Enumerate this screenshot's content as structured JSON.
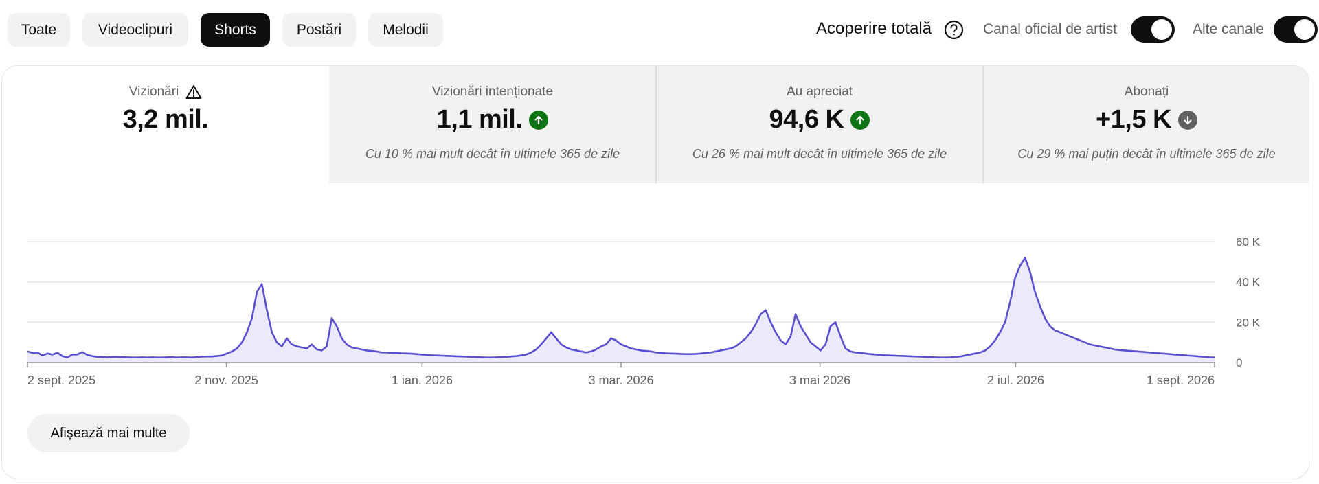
{
  "filters": {
    "chips": [
      {
        "label": "Toate",
        "active": false
      },
      {
        "label": "Videoclipuri",
        "active": false
      },
      {
        "label": "Shorts",
        "active": true
      },
      {
        "label": "Postări",
        "active": false
      },
      {
        "label": "Melodii",
        "active": false
      }
    ],
    "reach_label": "Acoperire totală",
    "help_icon": "question-circle-icon",
    "toggles": [
      {
        "label": "Canal oficial de artist",
        "on": true
      },
      {
        "label": "Alte canale",
        "on": true
      }
    ]
  },
  "metrics": [
    {
      "title": "Vizionări",
      "value": "3,2 mil.",
      "note": "",
      "trend": "",
      "warning": true,
      "active": true
    },
    {
      "title": "Vizionări intenționate",
      "value": "1,1 mil.",
      "note": "Cu 10 % mai mult decât în ultimele 365 de zile",
      "trend": "up",
      "warning": false,
      "active": false
    },
    {
      "title": "Au apreciat",
      "value": "94,6 K",
      "note": "Cu 26 % mai mult decât în ultimele 365 de zile",
      "trend": "up",
      "warning": false,
      "active": false
    },
    {
      "title": "Abonați",
      "value": "+1,5 K",
      "note": "Cu 29 % mai puțin decât în ultimele 365 de zile",
      "trend": "down",
      "warning": false,
      "active": false
    }
  ],
  "colors": {
    "series": "#5b4fd1",
    "fill": "#ebe9fa",
    "trend_up": "#107516",
    "trend_down": "#606060"
  },
  "chart_data": {
    "type": "area",
    "ylim": [
      0,
      60000
    ],
    "y_ticks": [
      {
        "value": 0,
        "label": "0"
      },
      {
        "value": 20000,
        "label": "20 K"
      },
      {
        "value": 40000,
        "label": "40 K"
      },
      {
        "value": 60000,
        "label": "60 K"
      }
    ],
    "x_ticks": [
      "2 sept. 2025",
      "2 nov. 2025",
      "1 ian. 2026",
      "3 mar. 2026",
      "3 mai 2026",
      "2 iul. 2026",
      "1 sept. 2026"
    ],
    "x_tick_days": [
      0,
      61,
      121,
      182,
      243,
      303,
      364
    ],
    "grid": true,
    "legend": "none",
    "series": [
      {
        "values": [
          5500,
          4800,
          5000,
          3500,
          4500,
          4000,
          4800,
          3200,
          2500,
          4000,
          4000,
          5200,
          3800,
          3200,
          2800,
          2800,
          2600,
          2800,
          2800,
          2700,
          2600,
          2500,
          2500,
          2600,
          2500,
          2600,
          2500,
          2500,
          2600,
          2700,
          2500,
          2600,
          2600,
          2500,
          2700,
          2900,
          3000,
          3000,
          3200,
          3500,
          4500,
          5500,
          7000,
          10000,
          15000,
          22000,
          35000,
          39000,
          26000,
          15000,
          10000,
          8000,
          12000,
          9000,
          8000,
          7500,
          7000,
          9000,
          6500,
          6000,
          8000,
          22000,
          18000,
          12000,
          9000,
          7500,
          7000,
          6500,
          6000,
          5800,
          5500,
          5000,
          5000,
          4800,
          4800,
          4600,
          4500,
          4400,
          4200,
          4000,
          3800,
          3600,
          3500,
          3400,
          3300,
          3200,
          3100,
          3000,
          2900,
          2800,
          2700,
          2600,
          2500,
          2500,
          2600,
          2700,
          2800,
          3000,
          3200,
          3500,
          4000,
          5000,
          6500,
          9000,
          12000,
          15000,
          12000,
          9000,
          7500,
          6500,
          6000,
          5500,
          5000,
          5500,
          6500,
          8000,
          9000,
          12000,
          11000,
          9000,
          8000,
          7000,
          6500,
          6000,
          5800,
          5500,
          5000,
          4800,
          4600,
          4500,
          4400,
          4300,
          4200,
          4200,
          4300,
          4500,
          4800,
          5000,
          5500,
          6000,
          6500,
          7000,
          8000,
          10000,
          12000,
          15000,
          19000,
          24000,
          26000,
          20000,
          15000,
          11000,
          9000,
          13000,
          24000,
          18000,
          14000,
          10000,
          8000,
          6000,
          9000,
          18000,
          20000,
          13000,
          7000,
          5500,
          5000,
          4800,
          4500,
          4200,
          4000,
          3800,
          3600,
          3500,
          3400,
          3300,
          3200,
          3100,
          3000,
          2900,
          2800,
          2700,
          2600,
          2500,
          2500,
          2600,
          2800,
          3000,
          3500,
          4000,
          4500,
          5000,
          6000,
          8000,
          11000,
          15000,
          20000,
          30000,
          42000,
          48000,
          52000,
          45000,
          35000,
          28000,
          22000,
          18000,
          16000,
          15000,
          14000,
          13000,
          12000,
          11000,
          10000,
          9000,
          8500,
          8000,
          7500,
          7000,
          6500,
          6200,
          6000,
          5800,
          5600,
          5400,
          5200,
          5000,
          4800,
          4600,
          4400,
          4200,
          4000,
          3800,
          3600,
          3400,
          3200,
          3000,
          2800,
          2600,
          2500
        ],
        "name": ""
      }
    ]
  },
  "show_more_label": "Afișează mai multe"
}
